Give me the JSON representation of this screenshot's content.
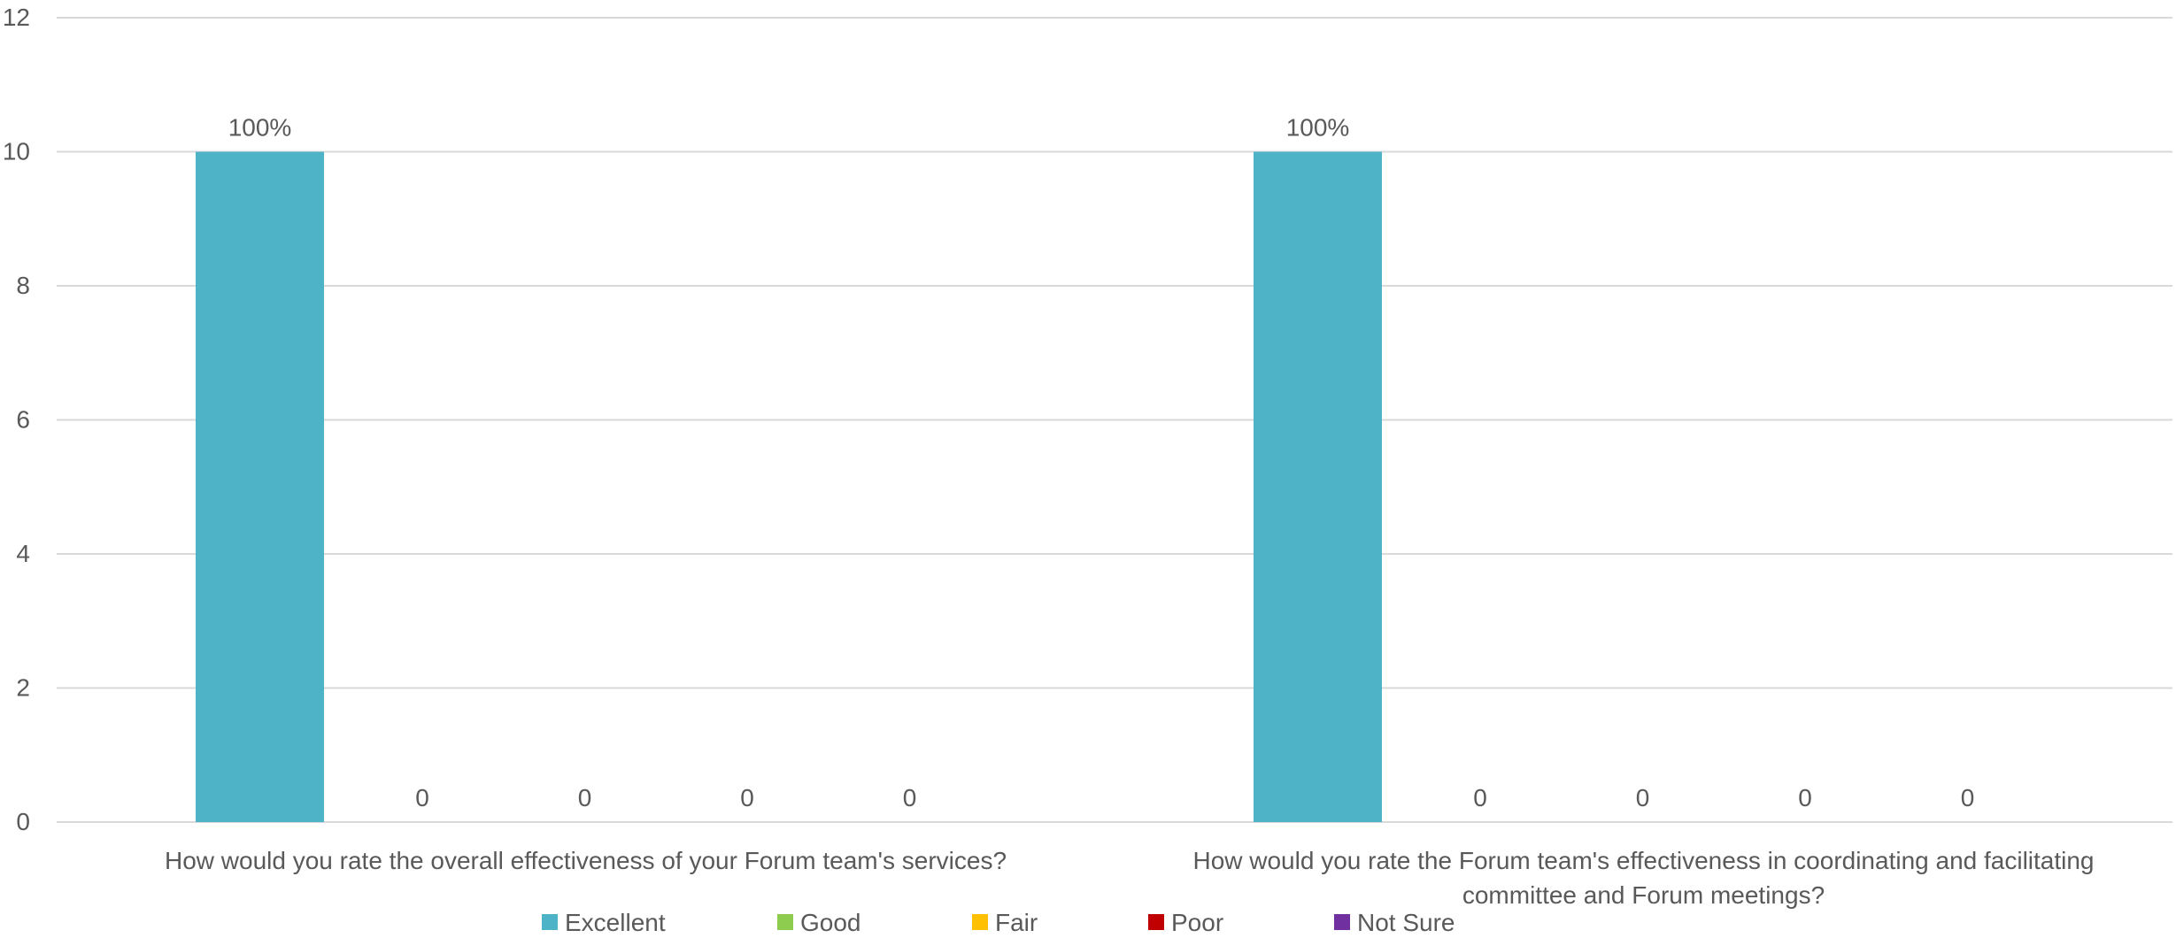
{
  "chart_data": {
    "type": "bar",
    "title": "",
    "xlabel": "",
    "ylabel": "",
    "ylim": [
      0,
      12
    ],
    "yticks": [
      0,
      2,
      4,
      6,
      8,
      10,
      12
    ],
    "grid": true,
    "legend_position": "bottom",
    "categories": [
      {
        "lines": [
          "How would you rate the overall effectiveness of your Forum team's services?"
        ]
      },
      {
        "lines": [
          "How would you rate the Forum team's effectiveness in coordinating and facilitating",
          "committee and Forum meetings?"
        ]
      }
    ],
    "series": [
      {
        "name": "Excellent",
        "color": "#4eb3c6",
        "values": [
          10,
          10
        ],
        "labels": [
          "100%",
          "100%"
        ]
      },
      {
        "name": "Good",
        "color": "#8dcc4e",
        "values": [
          0,
          0
        ],
        "labels": [
          "0",
          "0"
        ]
      },
      {
        "name": "Fair",
        "color": "#ffc000",
        "values": [
          0,
          0
        ],
        "labels": [
          "0",
          "0"
        ]
      },
      {
        "name": "Poor",
        "color": "#c00000",
        "values": [
          0,
          0
        ],
        "labels": [
          "0",
          "0"
        ]
      },
      {
        "name": "Not Sure",
        "color": "#7030a0",
        "values": [
          0,
          0
        ],
        "labels": [
          "0",
          "0"
        ]
      }
    ]
  }
}
